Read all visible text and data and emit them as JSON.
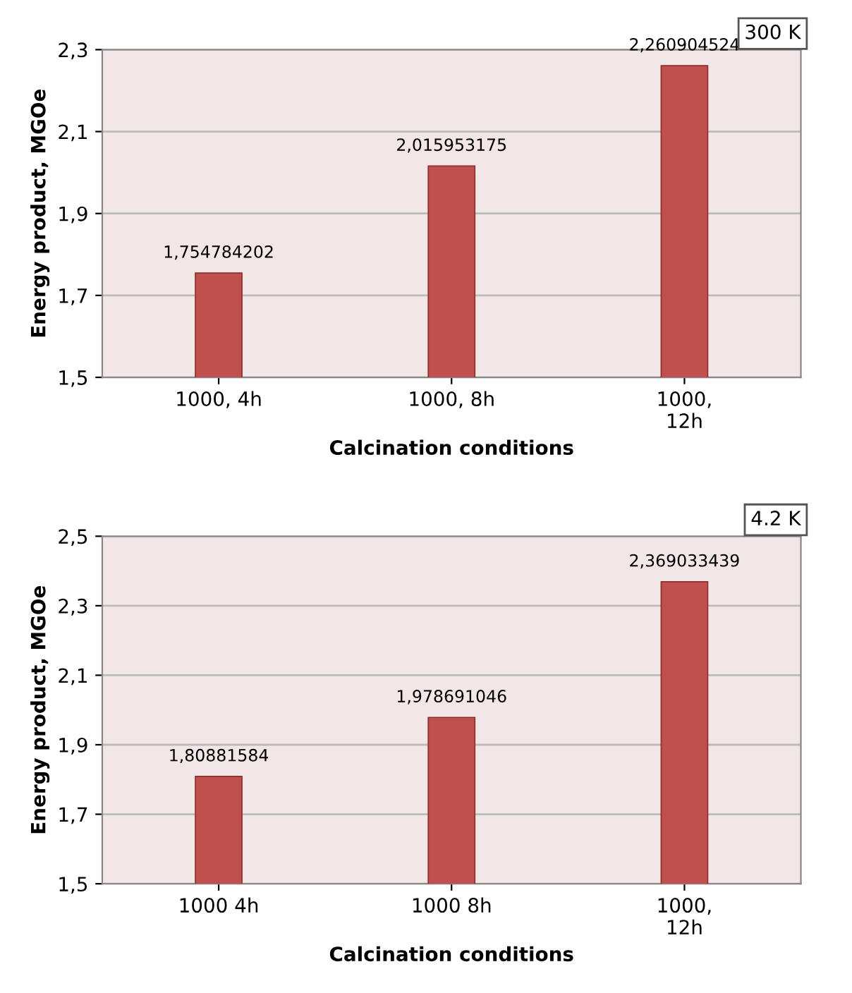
{
  "chart_data": [
    {
      "type": "bar",
      "categories": [
        "1000, 4h",
        "1000, 8h",
        "1000,\n12h"
      ],
      "values": [
        1.754784202,
        2.015953175,
        2.260904524
      ],
      "colors": [
        "#c0504d",
        "#c0504d",
        "#c0504d"
      ],
      "value_labels": [
        "1,754784202",
        "2,015953175",
        "2,260904524"
      ],
      "xlabel": "Calcination conditions",
      "ylabel": "Energy product, MGOe",
      "ylim": [
        1.5,
        2.3
      ],
      "yticks": [
        {
          "value": 1.5,
          "label": "1,5"
        },
        {
          "value": 1.7,
          "label": "1,7"
        },
        {
          "value": 1.9,
          "label": "1,9"
        },
        {
          "value": 2.1,
          "label": "2,1"
        },
        {
          "value": 2.3,
          "label": "2,3"
        }
      ],
      "grid": "y",
      "annotations": [
        "300 K"
      ]
    },
    {
      "type": "bar",
      "categories": [
        "1000 4h",
        "1000 8h",
        "1000,\n12h"
      ],
      "values": [
        1.80881584,
        1.978691046,
        2.369033439
      ],
      "colors": [
        "#c0504d",
        "#c0504d",
        "#c0504d"
      ],
      "value_labels": [
        "1,80881584",
        "1,978691046",
        "2,369033439"
      ],
      "xlabel": "Calcination conditions",
      "ylabel": "Energy product, MGOe",
      "ylim": [
        1.5,
        2.5
      ],
      "yticks": [
        {
          "value": 1.5,
          "label": "1,5"
        },
        {
          "value": 1.7,
          "label": "1,7"
        },
        {
          "value": 1.9,
          "label": "1,9"
        },
        {
          "value": 2.1,
          "label": "2,1"
        },
        {
          "value": 2.3,
          "label": "2,3"
        },
        {
          "value": 2.5,
          "label": "2,5"
        }
      ],
      "grid": "y",
      "annotations": [
        "4.2 K"
      ]
    }
  ]
}
